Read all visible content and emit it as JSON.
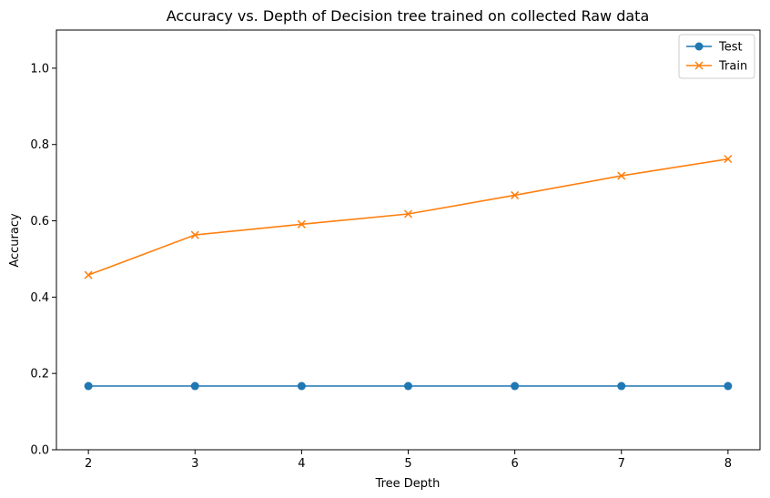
{
  "chart_data": {
    "type": "line",
    "title": "Accuracy vs. Depth of Decision tree trained on collected Raw data",
    "xlabel": "Tree Depth",
    "ylabel": "Accuracy",
    "x": [
      2,
      3,
      4,
      5,
      6,
      7,
      8
    ],
    "xlim": [
      1.7,
      8.3
    ],
    "ylim": [
      0.0,
      1.1
    ],
    "xticks": [
      "2",
      "3",
      "4",
      "5",
      "6",
      "7",
      "8"
    ],
    "yticks": [
      "0.0",
      "0.2",
      "0.4",
      "0.6",
      "0.8",
      "1.0"
    ],
    "grid": false,
    "legend_position": "top-right",
    "series": [
      {
        "name": "Test",
        "values": [
          0.167,
          0.167,
          0.167,
          0.167,
          0.167,
          0.167,
          0.167
        ],
        "color": "#1f77b4",
        "marker": "circle"
      },
      {
        "name": "Train",
        "values": [
          0.458,
          0.563,
          0.591,
          0.618,
          0.667,
          0.718,
          0.762
        ],
        "color": "#ff7f0e",
        "marker": "x"
      }
    ]
  }
}
